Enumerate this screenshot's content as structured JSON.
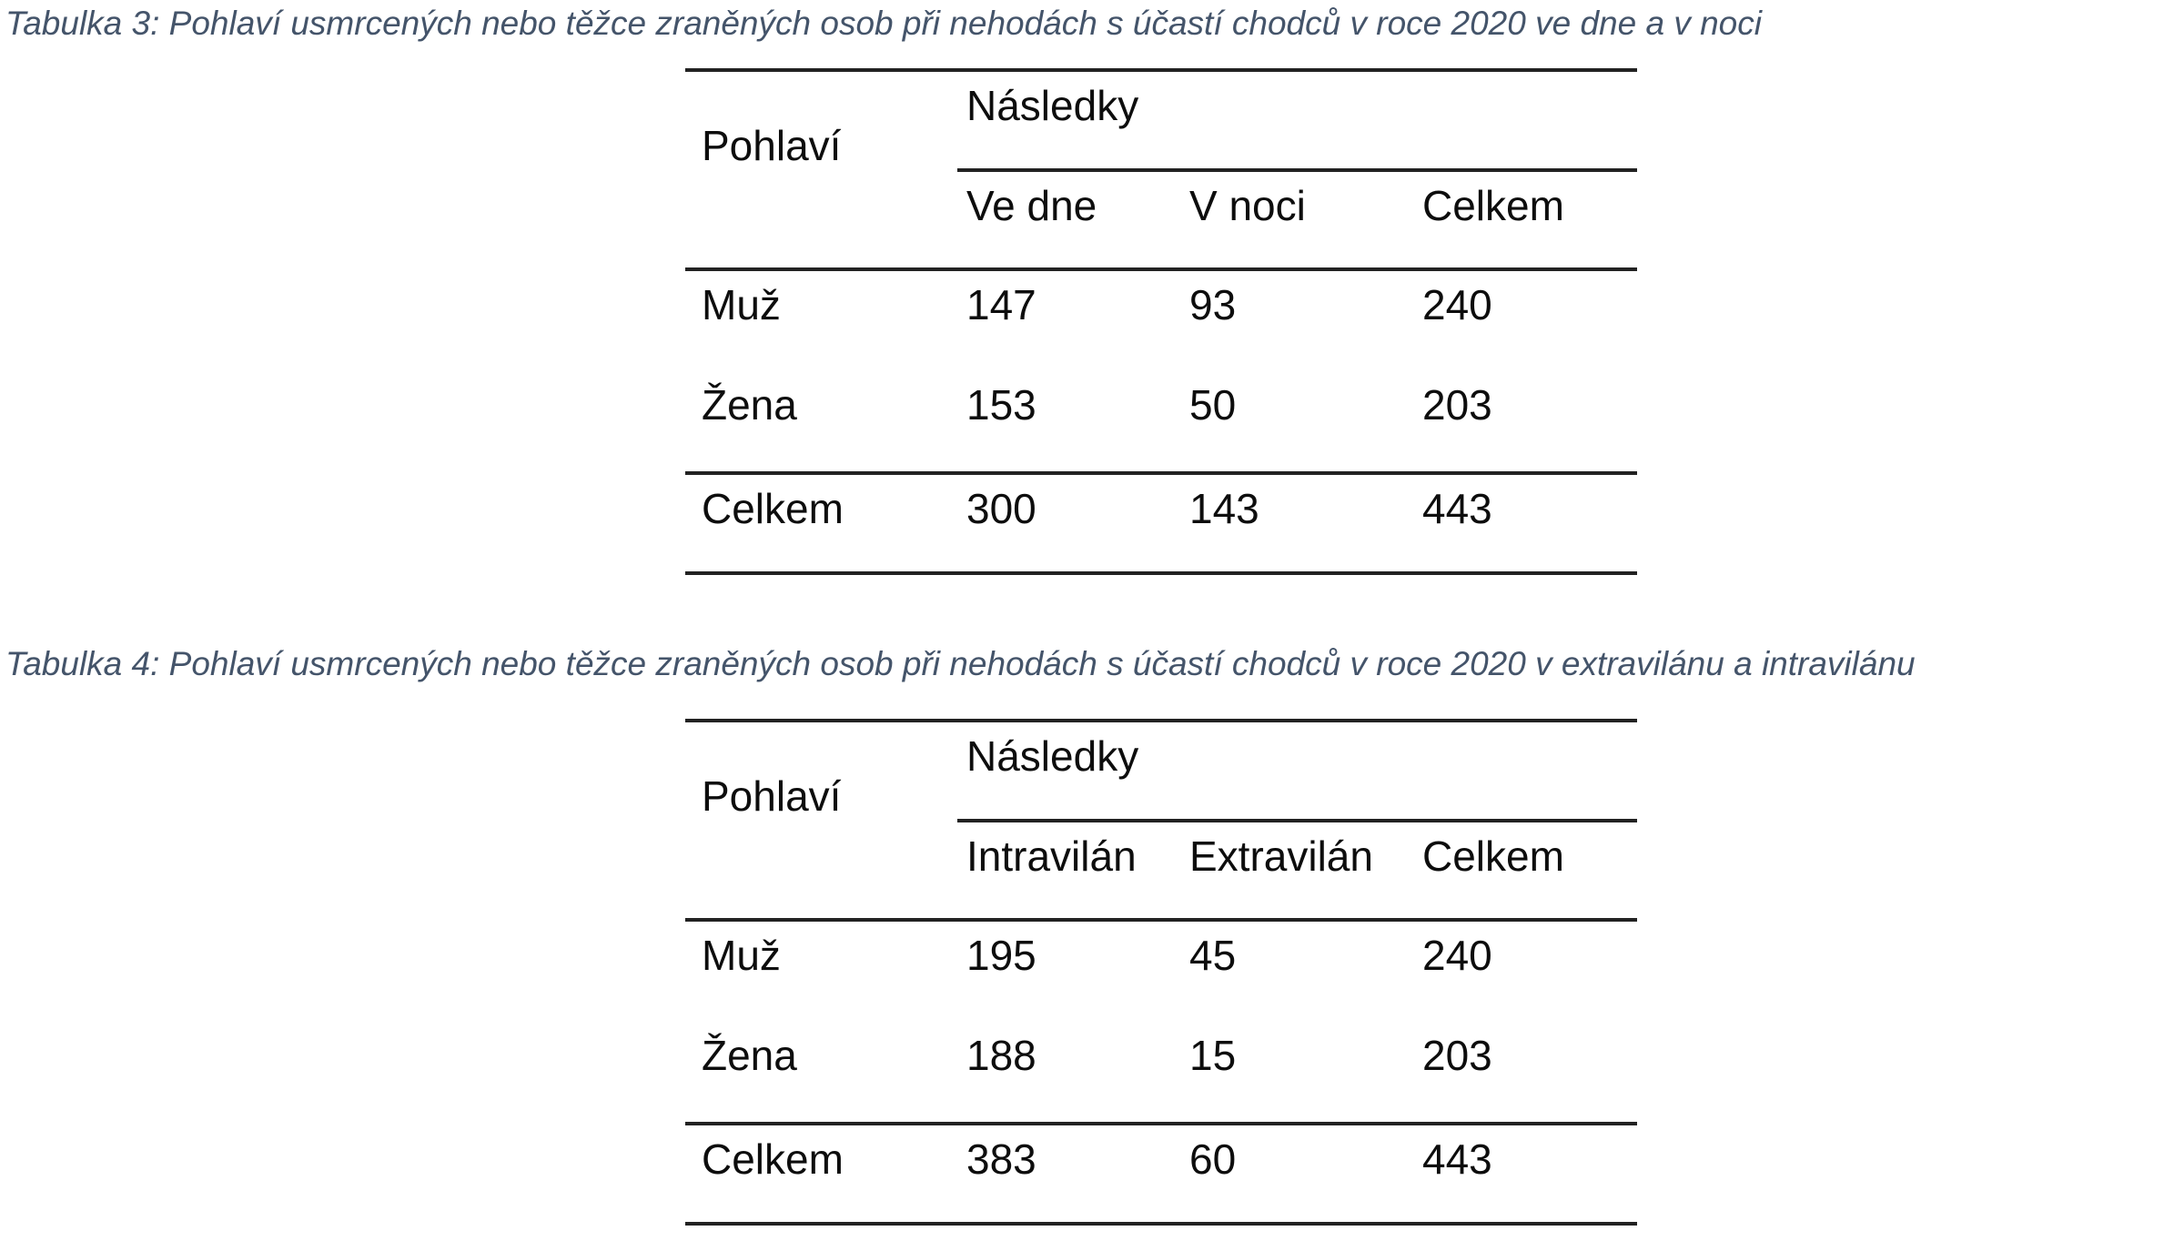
{
  "page": {
    "background_color": "#ffffff",
    "caption_color": "#44546A",
    "rule_color": "#222222",
    "text_color": "#0d0d0d"
  },
  "tables": [
    {
      "caption": "Tabulka 3: Pohlaví usmrcených nebo těžce zraněných osob při nehodách s účastí chodců v roce 2020 ve dne a v noci",
      "row_header_label": "Pohlaví",
      "col_group_label": "Následky",
      "columns": [
        "Ve dne",
        "V noci",
        "Celkem"
      ],
      "rows": [
        {
          "label": "Muž",
          "values": [
            "147",
            "93",
            "240"
          ]
        },
        {
          "label": "Žena",
          "values": [
            "153",
            "50",
            "203"
          ]
        },
        {
          "label": "Celkem",
          "values": [
            "300",
            "143",
            "443"
          ]
        }
      ]
    },
    {
      "caption": "Tabulka 4: Pohlaví usmrcených nebo těžce zraněných osob při nehodách s účastí chodců v roce 2020 v extravilánu a intravilánu",
      "row_header_label": "Pohlaví",
      "col_group_label": "Následky",
      "columns": [
        "Intravilán",
        "Extravilán",
        "Celkem"
      ],
      "rows": [
        {
          "label": "Muž",
          "values": [
            "195",
            "45",
            "240"
          ]
        },
        {
          "label": "Žena",
          "values": [
            "188",
            "15",
            "203"
          ]
        },
        {
          "label": "Celkem",
          "values": [
            "383",
            "60",
            "443"
          ]
        }
      ]
    }
  ]
}
